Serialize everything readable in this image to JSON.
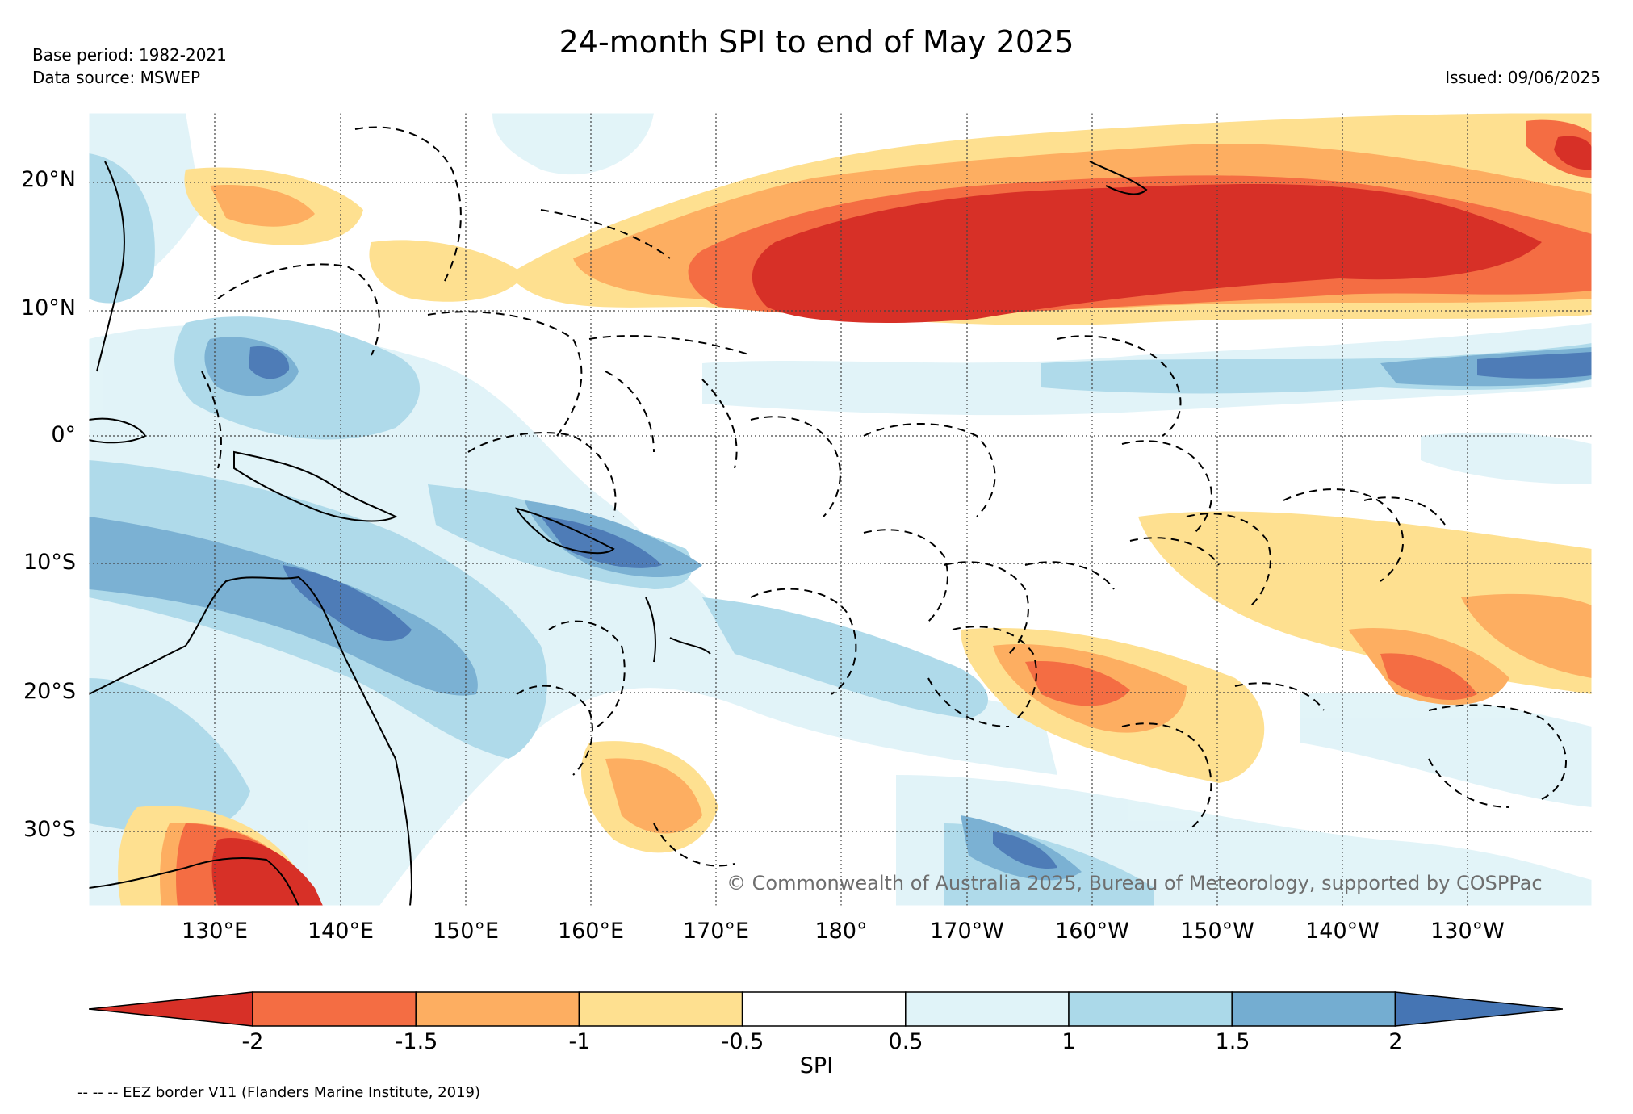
{
  "title": "24-month SPI to end of May 2025",
  "base_period": "Base period: 1982-2021",
  "data_source": "Data source: MSWEP",
  "issued": "Issued: 09/06/2025",
  "copyright": "© Commonwealth of Australia 2025, Bureau of Meteorology, supported by COSPPac",
  "lat_labels": [
    "20°N",
    "10°N",
    "0°",
    "10°S",
    "20°S",
    "30°S"
  ],
  "lon_labels": [
    "130°E",
    "140°E",
    "150°E",
    "160°E",
    "170°E",
    "180°",
    "170°W",
    "160°W",
    "150°W",
    "140°W",
    "130°W"
  ],
  "colorbar": {
    "label": "SPI",
    "ticks": [
      "-2",
      "-1.5",
      "-1",
      "-0.5",
      "0.5",
      "1",
      "1.5",
      "2"
    ],
    "colors": [
      "#d73027",
      "#f46d43",
      "#fdae61",
      "#fee090",
      "#ffffff",
      "#e0f3f8",
      "#abd9e9",
      "#74add1",
      "#4575b4"
    ]
  },
  "eez_note": "-- -- -- EEZ border V11 (Flanders Marine Institute, 2019)"
}
